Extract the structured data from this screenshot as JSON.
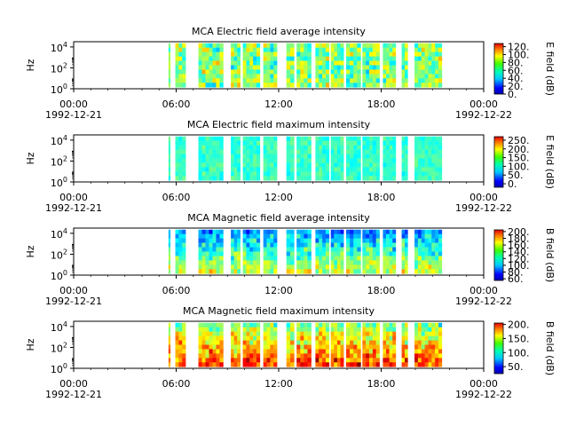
{
  "chart_data": [
    {
      "type": "heatmap",
      "title": "MCA  Electric field average intensity",
      "ylabel": "Hz",
      "y_ticks": [
        "10^0",
        "10^2",
        "10^4"
      ],
      "x_ticks": [
        "00:00",
        "06:00",
        "12:00",
        "18:00",
        "00:00"
      ],
      "x_dates": [
        "1992-12-21",
        "1992-12-22"
      ],
      "xlim_hours": [
        0,
        24
      ],
      "y_scale": "log",
      "colorbar_label": "E field (dB)",
      "colorbar_ticks": [
        "0.",
        "20.",
        "40.",
        "60.",
        "80.",
        "100.",
        "120."
      ],
      "colorbar_range": [
        0,
        128
      ],
      "data_intervals_hours": [
        [
          5.55,
          5.65
        ],
        [
          5.95,
          6.55
        ],
        [
          7.3,
          8.75
        ],
        [
          9.2,
          9.75
        ],
        [
          9.9,
          10.9
        ],
        [
          11.1,
          11.9
        ],
        [
          12.45,
          12.9
        ],
        [
          13.05,
          13.9
        ],
        [
          14.15,
          14.95
        ],
        [
          15.05,
          15.8
        ],
        [
          15.95,
          16.8
        ],
        [
          16.9,
          17.9
        ],
        [
          18.1,
          18.85
        ],
        [
          19.2,
          19.55
        ],
        [
          19.95,
          21.55
        ]
      ],
      "color_level_range": [
        0.3,
        0.85
      ]
    },
    {
      "type": "heatmap",
      "title": "MCA  Electric field maximum intensity",
      "ylabel": "Hz",
      "y_ticks": [
        "10^0",
        "10^2",
        "10^4"
      ],
      "x_ticks": [
        "00:00",
        "06:00",
        "12:00",
        "18:00",
        "00:00"
      ],
      "x_dates": [
        "1992-12-21",
        "1992-12-22"
      ],
      "xlim_hours": [
        0,
        24
      ],
      "y_scale": "log",
      "colorbar_label": "E field (dB)",
      "colorbar_ticks": [
        "0.",
        "50.",
        "100.",
        "150.",
        "200.",
        "250."
      ],
      "colorbar_range": [
        -20,
        270
      ],
      "data_intervals_hours": [
        [
          5.55,
          5.65
        ],
        [
          5.95,
          6.55
        ],
        [
          7.3,
          8.75
        ],
        [
          9.2,
          9.75
        ],
        [
          9.9,
          10.9
        ],
        [
          11.1,
          11.9
        ],
        [
          12.45,
          12.9
        ],
        [
          13.05,
          13.9
        ],
        [
          14.15,
          14.95
        ],
        [
          15.05,
          15.8
        ],
        [
          15.95,
          16.8
        ],
        [
          16.9,
          17.9
        ],
        [
          18.1,
          18.85
        ],
        [
          19.2,
          19.55
        ],
        [
          19.95,
          21.55
        ]
      ],
      "color_level_range": [
        0.35,
        0.55
      ]
    },
    {
      "type": "heatmap",
      "title": "MCA  Magnetic field average intensity",
      "ylabel": "Hz",
      "y_ticks": [
        "10^0",
        "10^2",
        "10^4"
      ],
      "x_ticks": [
        "00:00",
        "06:00",
        "12:00",
        "18:00",
        "00:00"
      ],
      "x_dates": [
        "1992-12-21",
        "1992-12-22"
      ],
      "xlim_hours": [
        0,
        24
      ],
      "y_scale": "log",
      "colorbar_label": "B field (dB)",
      "colorbar_ticks": [
        "60.",
        "80.",
        "100.",
        "120.",
        "140.",
        "160.",
        "180.",
        "200."
      ],
      "colorbar_range": [
        55,
        205
      ],
      "data_intervals_hours": [
        [
          5.55,
          5.65
        ],
        [
          5.95,
          6.55
        ],
        [
          7.3,
          8.75
        ],
        [
          9.2,
          9.75
        ],
        [
          9.9,
          10.9
        ],
        [
          11.1,
          11.9
        ],
        [
          12.45,
          12.9
        ],
        [
          13.05,
          13.9
        ],
        [
          14.15,
          14.95
        ],
        [
          15.05,
          15.8
        ],
        [
          15.95,
          16.8
        ],
        [
          16.9,
          17.9
        ],
        [
          18.1,
          18.85
        ],
        [
          19.2,
          19.55
        ],
        [
          19.95,
          21.55
        ]
      ],
      "color_level_range": [
        0.1,
        0.55
      ]
    },
    {
      "type": "heatmap",
      "title": "MCA  Magnetic field maximum intensity",
      "ylabel": "Hz",
      "y_ticks": [
        "10^0",
        "10^2",
        "10^4"
      ],
      "x_ticks": [
        "00:00",
        "06:00",
        "12:00",
        "18:00",
        "00:00"
      ],
      "x_dates": [
        "1992-12-21",
        "1992-12-22"
      ],
      "xlim_hours": [
        0,
        24
      ],
      "y_scale": "log",
      "colorbar_label": "B field (dB)",
      "colorbar_ticks": [
        "50.",
        "100.",
        "150.",
        "200."
      ],
      "colorbar_range": [
        25,
        205
      ],
      "data_intervals_hours": [
        [
          5.55,
          5.65
        ],
        [
          5.95,
          6.55
        ],
        [
          7.3,
          8.75
        ],
        [
          9.2,
          9.75
        ],
        [
          9.9,
          10.9
        ],
        [
          11.1,
          11.9
        ],
        [
          12.45,
          12.9
        ],
        [
          13.05,
          13.9
        ],
        [
          14.15,
          14.95
        ],
        [
          15.05,
          15.8
        ],
        [
          15.95,
          16.8
        ],
        [
          16.9,
          17.9
        ],
        [
          18.1,
          18.85
        ],
        [
          19.2,
          19.55
        ],
        [
          19.95,
          21.55
        ]
      ],
      "color_level_range": [
        0.3,
        0.85
      ]
    }
  ]
}
